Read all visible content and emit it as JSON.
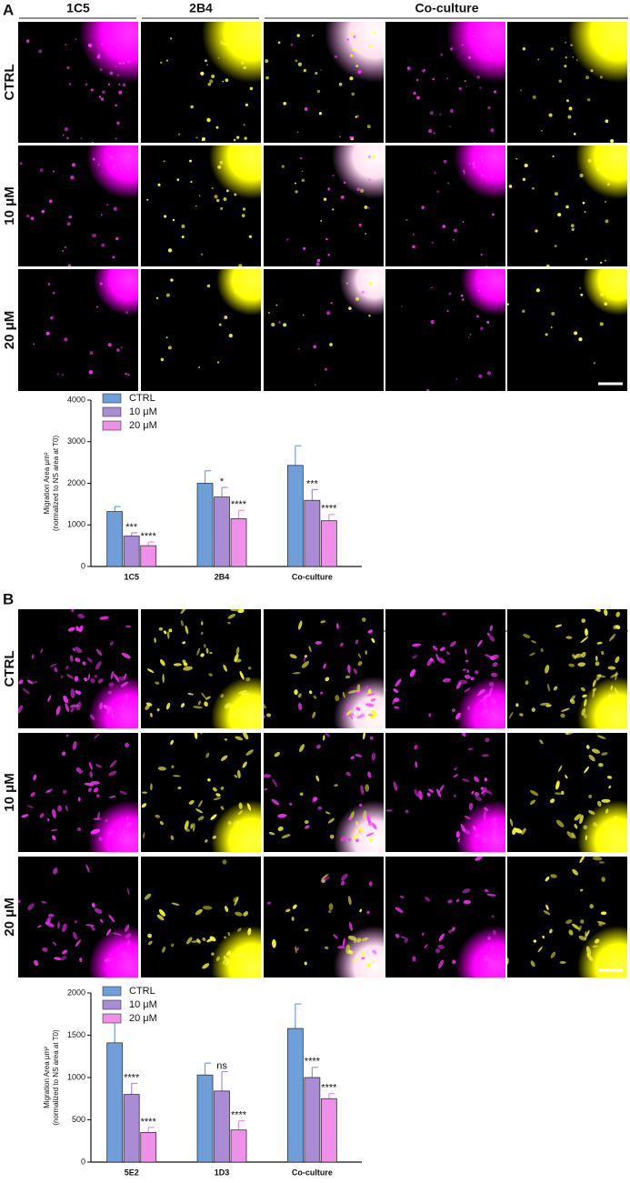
{
  "panels": [
    {
      "label": "A",
      "columns": [
        "1C5",
        "2B4",
        "Co-culture"
      ],
      "rows": [
        "CTRL",
        "10 μM",
        "20 μM"
      ]
    },
    {
      "label": "B",
      "columns": [
        "5E2",
        "1D3",
        "Co-culture"
      ],
      "rows": [
        "CTRL",
        "10 μM",
        "20 μM"
      ]
    }
  ],
  "chart_data": [
    {
      "type": "bar",
      "ylabel": "Migration Area µm²",
      "ylabel_note": "(normalized to NS area at T0)",
      "categories": [
        "1C5",
        "2B4",
        "Co-culture"
      ],
      "ylim": [
        0,
        4000
      ],
      "yticks": [
        0,
        1000,
        2000,
        3000,
        4000
      ],
      "legend": "top-left",
      "series": [
        {
          "name": "CTRL",
          "color": "#6f9fd8",
          "values": [
            1320,
            2000,
            2430
          ],
          "errors": [
            120,
            300,
            470
          ]
        },
        {
          "name": "10 μM",
          "color": "#a98bd6",
          "values": [
            730,
            1670,
            1590
          ],
          "errors": [
            80,
            230,
            260
          ],
          "significance": [
            "***",
            "*",
            "***"
          ]
        },
        {
          "name": "20 μM",
          "color": "#ee8fe8",
          "values": [
            500,
            1150,
            1100
          ],
          "errors": [
            90,
            200,
            150
          ],
          "significance": [
            "****",
            "****",
            "****"
          ]
        }
      ]
    },
    {
      "type": "bar",
      "ylabel": "Migration Area µm²",
      "ylabel_note": "(normalized to NS area at T0)",
      "categories": [
        "5E2",
        "1D3",
        "Co-culture"
      ],
      "ylim": [
        0,
        2000
      ],
      "yticks": [
        0,
        500,
        1000,
        1500,
        2000
      ],
      "legend": "top-left",
      "series": [
        {
          "name": "CTRL",
          "color": "#6f9fd8",
          "values": [
            1410,
            1030,
            1580
          ],
          "errors": [
            260,
            140,
            290
          ]
        },
        {
          "name": "10 μM",
          "color": "#a98bd6",
          "values": [
            800,
            840,
            1000
          ],
          "errors": [
            130,
            230,
            120
          ],
          "significance": [
            "****",
            "ns",
            "****"
          ]
        },
        {
          "name": "20 μM",
          "color": "#ee8fe8",
          "values": [
            350,
            380,
            750
          ],
          "errors": [
            60,
            110,
            60
          ],
          "significance": [
            "****",
            "****",
            "****"
          ]
        }
      ]
    }
  ]
}
